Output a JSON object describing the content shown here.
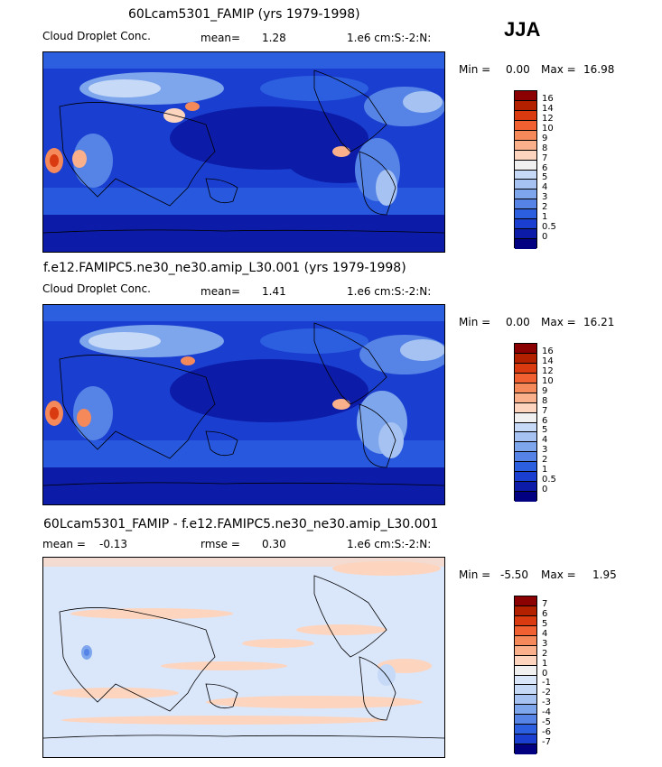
{
  "season": "JJA",
  "panels": [
    {
      "title": "60Lcam5301_FAMIP (yrs 1979-1998)",
      "variable": "Cloud Droplet Conc.",
      "stat_text": "mean=",
      "stat_value": "1.28",
      "units": "1.e6 cm:S:-2:N:",
      "min_label": "Min =",
      "min_value": "0.00",
      "max_label": "Max =",
      "max_value": "16.98",
      "levels": [
        "16",
        "14",
        "12",
        "10",
        "9",
        "8",
        "7",
        "6",
        "5",
        "4",
        "3",
        "2",
        "1",
        "0.5",
        "0"
      ],
      "colors": [
        "#8b0000",
        "#b22000",
        "#d93a10",
        "#f06030",
        "#f5895a",
        "#fab08a",
        "#fdd5bf",
        "#f0f0f0",
        "#c6d9f7",
        "#a5c2f2",
        "#7ea6ec",
        "#5584e6",
        "#2c5fe0",
        "#1a3fd0",
        "#0c1ca8",
        "#000080"
      ]
    },
    {
      "title": "f.e12.FAMIPC5.ne30_ne30.amip_L30.001 (yrs 1979-1998)",
      "variable": "Cloud Droplet Conc.",
      "stat_text": "mean=",
      "stat_value": "1.41",
      "units": "1.e6 cm:S:-2:N:",
      "min_label": "Min =",
      "min_value": "0.00",
      "max_label": "Max =",
      "max_value": "16.21",
      "levels": [
        "16",
        "14",
        "12",
        "10",
        "9",
        "8",
        "7",
        "6",
        "5",
        "4",
        "3",
        "2",
        "1",
        "0.5",
        "0"
      ],
      "colors": [
        "#8b0000",
        "#b22000",
        "#d93a10",
        "#f06030",
        "#f5895a",
        "#fab08a",
        "#fdd5bf",
        "#f0f0f0",
        "#c6d9f7",
        "#a5c2f2",
        "#7ea6ec",
        "#5584e6",
        "#2c5fe0",
        "#1a3fd0",
        "#0c1ca8",
        "#000080"
      ]
    },
    {
      "title": "60Lcam5301_FAMIP - f.e12.FAMIPC5.ne30_ne30.amip_L30.001",
      "mean_text": "mean =",
      "mean_value": "-0.13",
      "rmse_text": "rmse =",
      "rmse_value": "0.30",
      "units": "1.e6 cm:S:-2:N:",
      "min_label": "Min =",
      "min_value": "-5.50",
      "max_label": "Max =",
      "max_value": "1.95",
      "levels": [
        "7",
        "6",
        "5",
        "4",
        "3",
        "2",
        "1",
        "0",
        "-1",
        "-2",
        "-3",
        "-4",
        "-5",
        "-6",
        "-7"
      ],
      "colors": [
        "#8b0000",
        "#b22000",
        "#d93a10",
        "#f06030",
        "#f5895a",
        "#fab08a",
        "#fdd5bf",
        "#f0f0f0",
        "#dae6fa",
        "#c6d9f7",
        "#a5c2f2",
        "#7ea6ec",
        "#5584e6",
        "#2c5fe0",
        "#1a3fd0",
        "#000080"
      ]
    }
  ]
}
